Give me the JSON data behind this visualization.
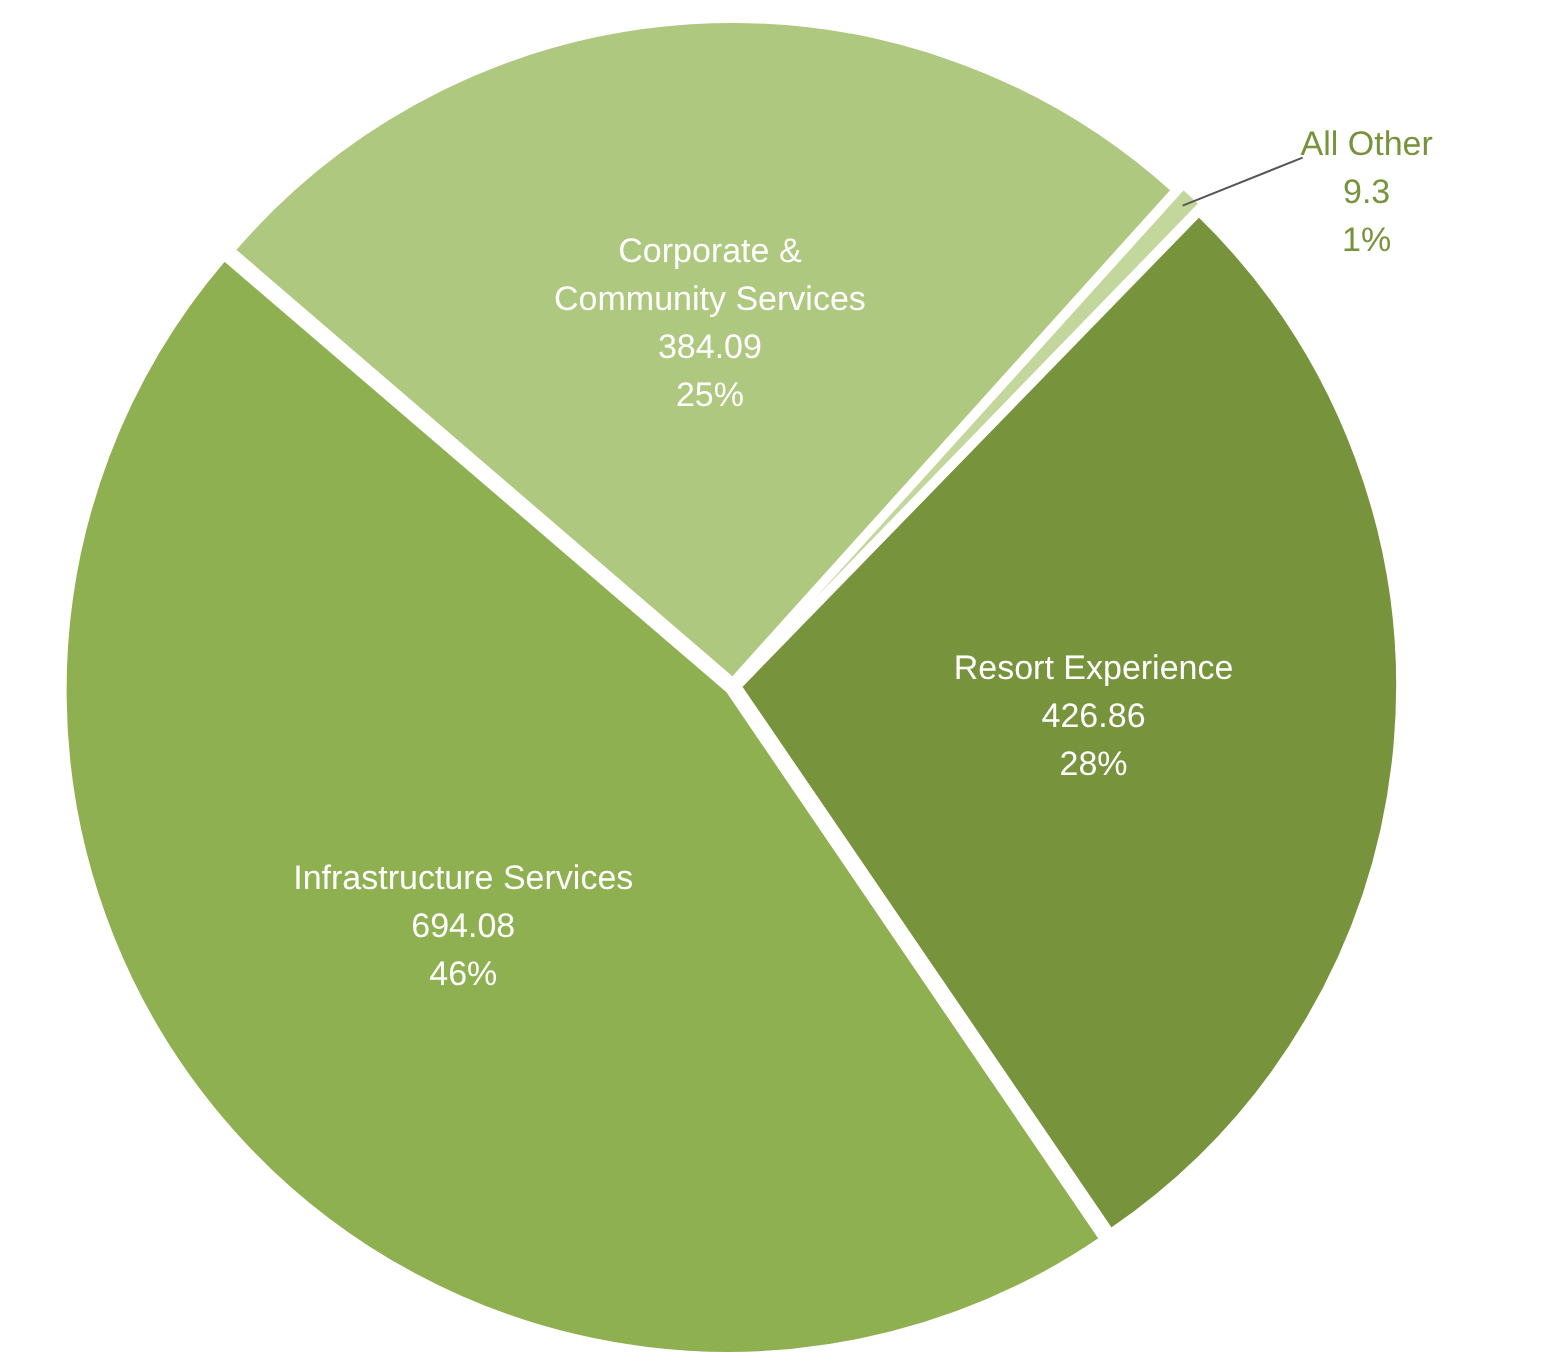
{
  "chart_data": {
    "type": "pie",
    "categories": [
      "All Other",
      "Resort Experience",
      "Infrastructure Services",
      "Corporate & Community Services"
    ],
    "values": [
      9.3,
      426.86,
      694.08,
      384.09
    ],
    "colors": [
      "#c3d69b",
      "#77933c",
      "#8fb050",
      "#afc87f"
    ],
    "value_labels": [
      "9.3\n1%",
      "426.86\n28%",
      "694.08\n46%",
      "384.09\n25%"
    ],
    "legend": false
  }
}
